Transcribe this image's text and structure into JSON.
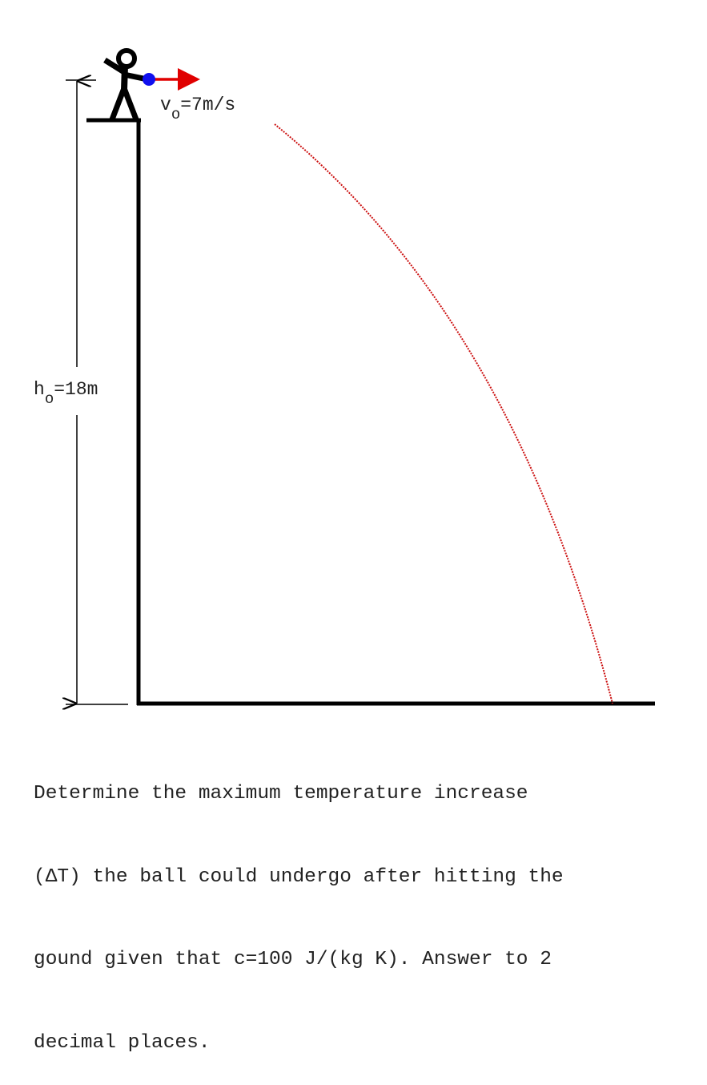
{
  "diagram": {
    "velocity_label": {
      "symbol": "v",
      "subscript": "o",
      "value": "=7m/s"
    },
    "height_label": {
      "symbol": "h",
      "subscript": "o",
      "value": "=18m"
    },
    "colors": {
      "structure": "#000000",
      "ball": "#1010ee",
      "velocity_arrow": "#e00000",
      "trajectory": "#cc1111"
    },
    "icons": [
      "stick-figure-icon",
      "ball-icon",
      "velocity-arrow-icon"
    ]
  },
  "problem": {
    "lines": [
      "Determine the maximum temperature increase",
      "(ΔT) the ball could undergo after hitting the",
      "gound given that c=100 J/(kg K). Answer to 2",
      "decimal places."
    ]
  }
}
